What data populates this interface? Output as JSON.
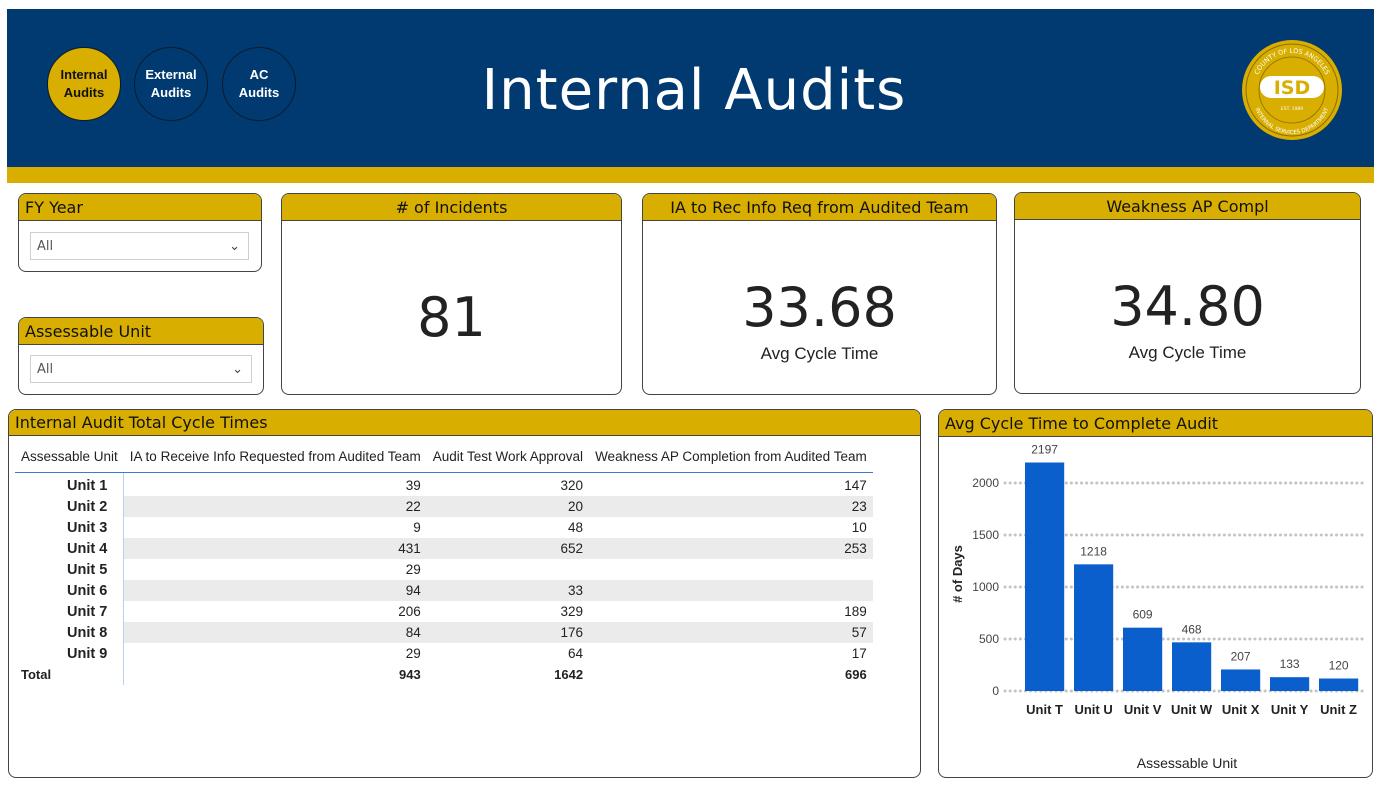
{
  "nav": {
    "buttons": [
      {
        "label": "Internal\nAudits",
        "active": true
      },
      {
        "label": "External\nAudits",
        "active": false
      },
      {
        "label": "AC\nAudits",
        "active": false
      }
    ]
  },
  "header": {
    "title": "Internal Audits",
    "logo": {
      "text": "ISD",
      "ring_top": "COUNTY OF LOS ANGELES",
      "ring_bottom": "INTERNAL SERVICES DEPARTMENT",
      "est": "EST. 1989"
    }
  },
  "colors": {
    "navy": "#003a70",
    "gold": "#d8ae00",
    "bar": "#0a5fcc"
  },
  "slicers": [
    {
      "title": "FY Year",
      "value": "All"
    },
    {
      "title": "Assessable Unit",
      "value": "All"
    }
  ],
  "kpis": [
    {
      "title": "# of Incidents",
      "value": "81",
      "sub": ""
    },
    {
      "title": "IA to Rec Info Req from Audited Team",
      "value": "33.68",
      "sub": "Avg Cycle Time"
    },
    {
      "title": "Weakness AP Compl",
      "value": "34.80",
      "sub": "Avg Cycle Time"
    }
  ],
  "matrix": {
    "title": "Internal Audit Total Cycle Times",
    "columns": [
      "Assessable Unit",
      "IA to Receive Info Requested from Audited Team",
      "Audit Test Work Approval",
      "Weakness AP Completion from Audited Team"
    ],
    "rows": [
      {
        "unit": "Unit 1",
        "c1": "39",
        "c2": "320",
        "c3": "147"
      },
      {
        "unit": "Unit 2",
        "c1": "22",
        "c2": "20",
        "c3": "23"
      },
      {
        "unit": "Unit 3",
        "c1": "9",
        "c2": "48",
        "c3": "10"
      },
      {
        "unit": "Unit 4",
        "c1": "431",
        "c2": "652",
        "c3": "253"
      },
      {
        "unit": "Unit 5",
        "c1": "29",
        "c2": "",
        "c3": ""
      },
      {
        "unit": "Unit 6",
        "c1": "94",
        "c2": "33",
        "c3": ""
      },
      {
        "unit": "Unit 7",
        "c1": "206",
        "c2": "329",
        "c3": "189"
      },
      {
        "unit": "Unit 8",
        "c1": "84",
        "c2": "176",
        "c3": "57"
      },
      {
        "unit": "Unit 9",
        "c1": "29",
        "c2": "64",
        "c3": "17"
      }
    ],
    "total": {
      "unit": "Total",
      "c1": "943",
      "c2": "1642",
      "c3": "696"
    }
  },
  "chart_data": {
    "type": "bar",
    "title": "Avg Cycle Time to Complete Audit",
    "categories": [
      "Unit T",
      "Unit U",
      "Unit V",
      "Unit W",
      "Unit X",
      "Unit Y",
      "Unit Z"
    ],
    "values": [
      2197,
      1218,
      609,
      468,
      207,
      133,
      120
    ],
    "xlabel": "Assessable Unit",
    "ylabel": "# of Days",
    "ylim": [
      0,
      2250
    ],
    "yticks": [
      0,
      500,
      1000,
      1500,
      2000
    ],
    "grid": true,
    "data_labels": true,
    "color": "#0a5fcc"
  }
}
